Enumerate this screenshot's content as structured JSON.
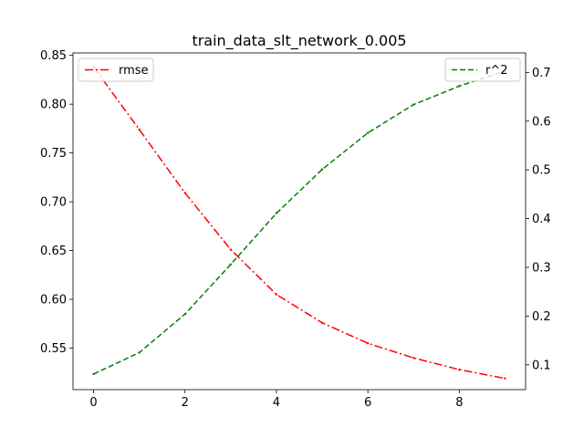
{
  "chart_data": {
    "type": "line",
    "title": "train_data_slt_network_0.005",
    "xlabel": "",
    "ylabel_left": "",
    "ylabel_right": "",
    "x": [
      0,
      1,
      2,
      3,
      4,
      5,
      6,
      7,
      8,
      9
    ],
    "xlim": [
      -0.45,
      9.45
    ],
    "xticks": [
      0,
      2,
      4,
      6,
      8
    ],
    "ylim_left": [
      0.5075,
      0.8525
    ],
    "yticks_left": [
      0.55,
      0.6,
      0.65,
      0.7,
      0.75,
      0.8,
      0.85
    ],
    "ylim_right": [
      0.049,
      0.74
    ],
    "yticks_right": [
      0.1,
      0.2,
      0.3,
      0.4,
      0.5,
      0.6,
      0.7
    ],
    "grid": false,
    "series": [
      {
        "name": "rmse",
        "axis": "left",
        "color": "#ff0000",
        "linestyle": "dashdot",
        "legend_position": "upper-left",
        "values": [
          0.838,
          0.774,
          0.709,
          0.651,
          0.605,
          0.576,
          0.555,
          0.54,
          0.528,
          0.519
        ]
      },
      {
        "name": "r^2",
        "axis": "right",
        "color": "#008000",
        "linestyle": "dashed",
        "legend_position": "upper-right",
        "values": [
          0.081,
          0.125,
          0.204,
          0.306,
          0.411,
          0.501,
          0.576,
          0.634,
          0.672,
          0.703
        ]
      }
    ]
  }
}
